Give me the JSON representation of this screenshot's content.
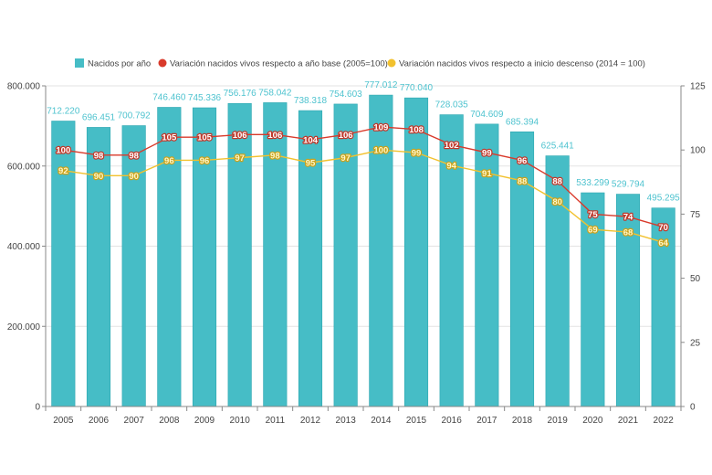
{
  "chart_data": {
    "type": "bar",
    "categories": [
      "2005",
      "2006",
      "2007",
      "2008",
      "2009",
      "2010",
      "2011",
      "2012",
      "2013",
      "2014",
      "2015",
      "2016",
      "2017",
      "2018",
      "2019",
      "2020",
      "2021",
      "2022"
    ],
    "series": [
      {
        "name": "Nacidos por año",
        "kind": "bar",
        "axis": "left",
        "color": "#46bdc6",
        "values": [
          712220,
          696451,
          700792,
          746460,
          745336,
          756176,
          758042,
          738318,
          754603,
          777012,
          770040,
          728035,
          704609,
          685394,
          625441,
          533299,
          529794,
          495295
        ],
        "labels": [
          "712.220",
          "696.451",
          "700.792",
          "746.460",
          "745.336",
          "756.176",
          "758.042",
          "738.318",
          "754.603",
          "777.012",
          "770.040",
          "728.035",
          "704.609",
          "685.394",
          "625.441",
          "533.299",
          "529.794",
          "495.295"
        ]
      },
      {
        "name": "Variación nacidos vivos respecto a año base (2005=100)",
        "kind": "line",
        "axis": "right",
        "color": "#d93a2b",
        "values": [
          100,
          98,
          98,
          105,
          105,
          106,
          106,
          104,
          106,
          109,
          108,
          102,
          99,
          96,
          88,
          75,
          74,
          70
        ]
      },
      {
        "name": "Variación nacidos vivos respecto a inicio descenso (2014 = 100)",
        "kind": "line",
        "axis": "right",
        "color": "#f2c12e",
        "values": [
          92,
          90,
          90,
          96,
          96,
          97,
          98,
          95,
          97,
          100,
          99,
          94,
          91,
          88,
          80,
          69,
          68,
          64
        ]
      }
    ],
    "y_left": {
      "min": 0,
      "max": 800000,
      "ticks": [
        0,
        200000,
        400000,
        600000,
        800000
      ],
      "tick_labels": [
        "0",
        "200.000",
        "400.000",
        "600.000",
        "800.000"
      ]
    },
    "y_right": {
      "min": 0,
      "max": 125,
      "ticks": [
        0,
        25,
        50,
        75,
        100,
        125
      ],
      "tick_labels": [
        "0",
        "25",
        "50",
        "75",
        "100",
        "125"
      ]
    },
    "legend_position": "top-center",
    "grid": true
  }
}
